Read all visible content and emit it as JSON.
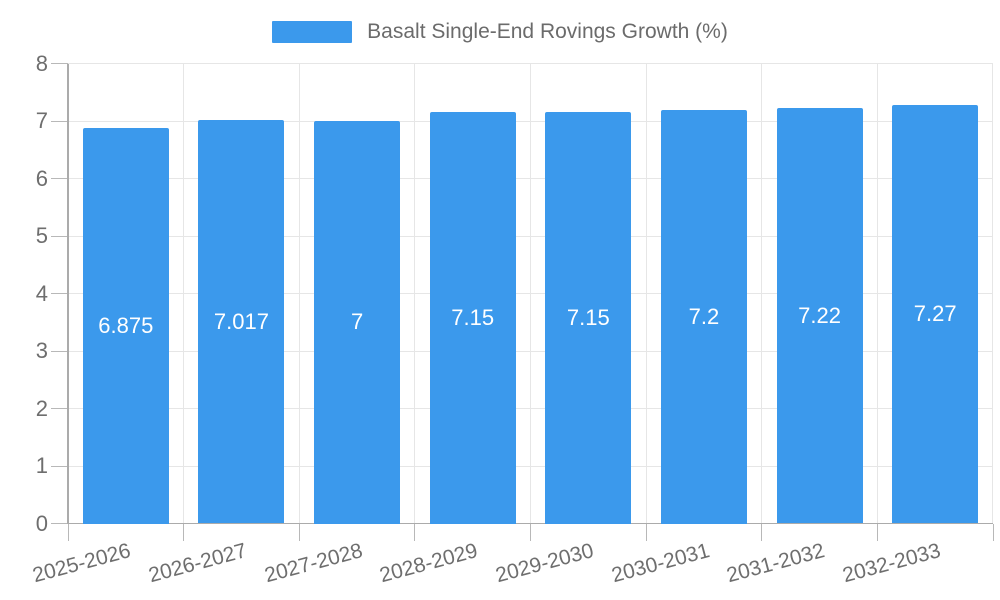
{
  "legend": {
    "label": "Basalt Single-End Rovings Growth (%)"
  },
  "chart_data": {
    "type": "bar",
    "title": "Basalt Single-End Rovings Growth (%)",
    "categories": [
      "2025-2026",
      "2026-2027",
      "2027-2028",
      "2028-2029",
      "2029-2030",
      "2030-2031",
      "2031-2032",
      "2032-2033"
    ],
    "values": [
      6.875,
      7.017,
      7,
      7.15,
      7.15,
      7.2,
      7.22,
      7.27
    ],
    "value_labels": [
      "6.875",
      "7.017",
      "7",
      "7.15",
      "7.15",
      "7.2",
      "7.22",
      "7.27"
    ],
    "xlabel": "",
    "ylabel": "",
    "ylim": [
      0,
      8
    ],
    "y_ticks": [
      0,
      1,
      2,
      3,
      4,
      5,
      6,
      7,
      8
    ],
    "grid": true,
    "legend_position": "top-center",
    "bar_labels_inside": true,
    "x_label_rotation_deg": -15,
    "colors": {
      "bar": "#3B99EC",
      "grid": "#E6E6E6",
      "axis": "#ABABAB",
      "tick": "#B8B8B8",
      "axis_text": "#6E6E6E",
      "title_text": "#6B6B6B",
      "value_text": "#FFFFFF",
      "background": "#FFFFFF"
    }
  }
}
